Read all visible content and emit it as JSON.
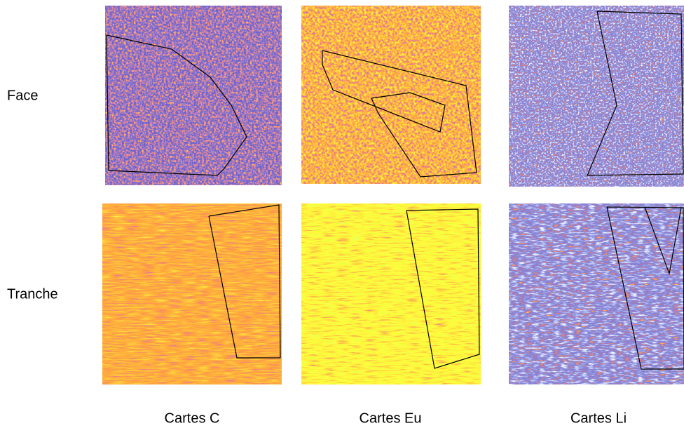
{
  "rows": [
    {
      "label": "Face"
    },
    {
      "label": "Tranche"
    }
  ],
  "columns": [
    {
      "label": "Cartes C"
    },
    {
      "label": "Cartes Eu"
    },
    {
      "label": "Cartes Li"
    }
  ]
}
